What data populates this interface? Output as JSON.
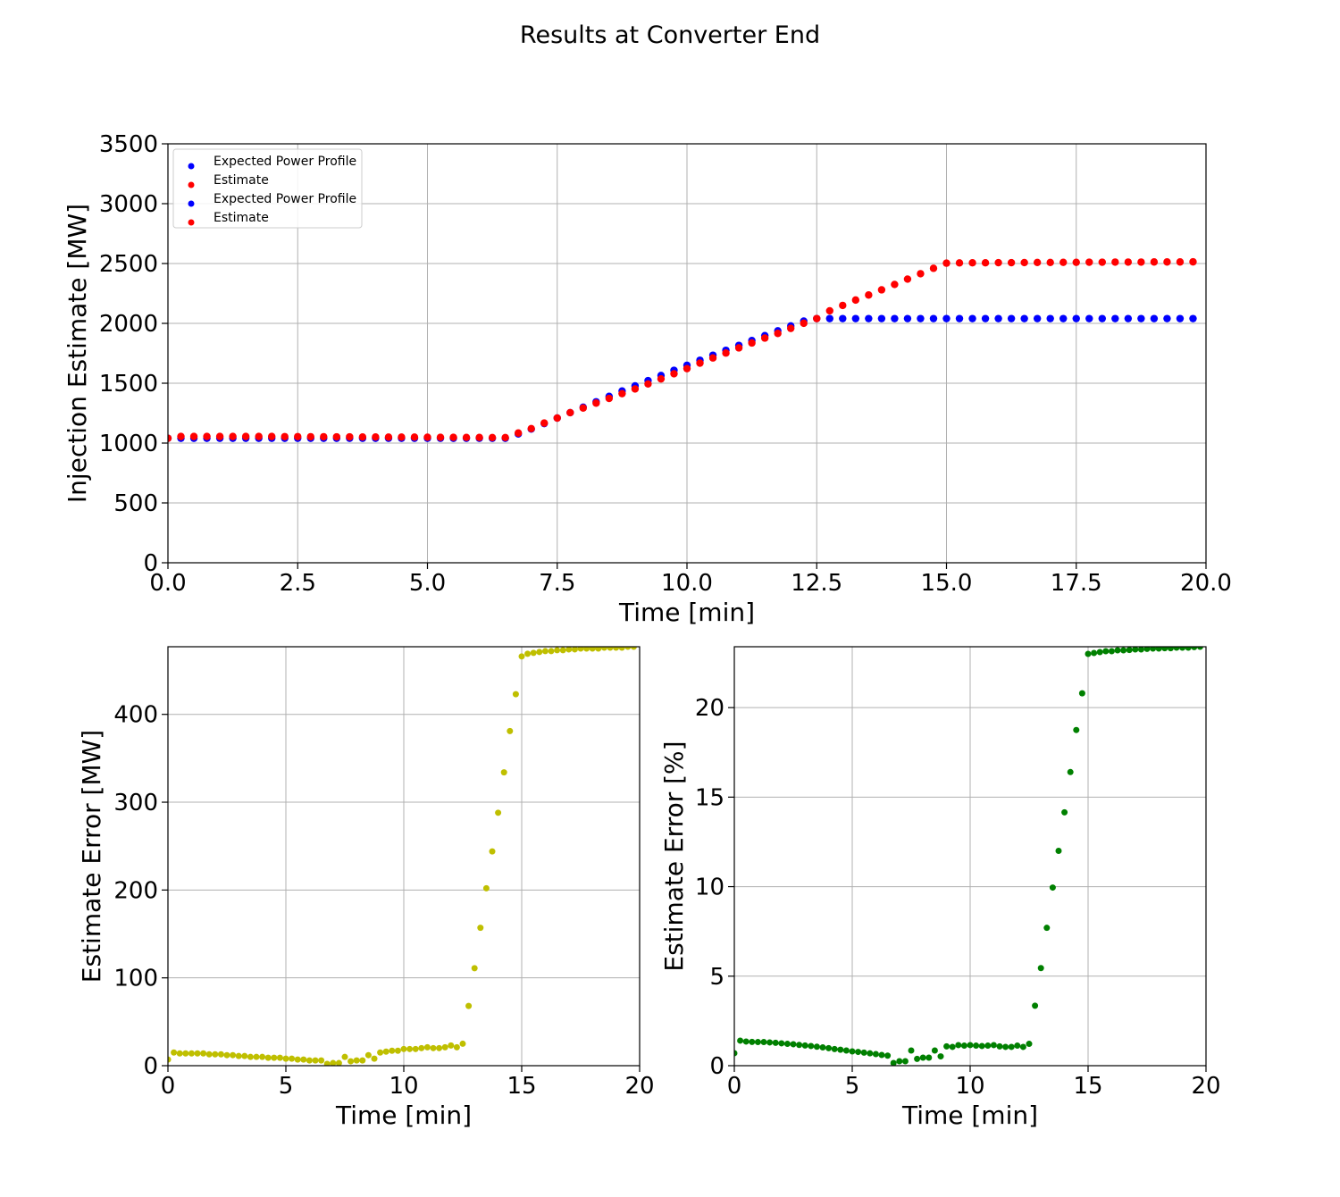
{
  "figure": {
    "title": "Results at Converter End"
  },
  "chart_data": [
    {
      "type": "scatter",
      "xlabel": "Time [min]",
      "ylabel": "Injection Estimate [MW]",
      "xlim": [
        0,
        20
      ],
      "ylim": [
        0,
        3500
      ],
      "xticks": [
        "0.0",
        "2.5",
        "5.0",
        "7.5",
        "10.0",
        "12.5",
        "15.0",
        "17.5",
        "20.0"
      ],
      "yticks": [
        "0",
        "500",
        "1000",
        "1500",
        "2000",
        "2500",
        "3000",
        "3500"
      ],
      "grid": true,
      "legend_position": "top-left",
      "legend": [
        {
          "label": "Expected Power Profile",
          "color": "#0000ff"
        },
        {
          "label": "Estimate",
          "color": "#ff0000"
        },
        {
          "label": "Expected Power Profile",
          "color": "#0000ff"
        },
        {
          "label": "Estimate",
          "color": "#ff0000"
        }
      ],
      "series": [
        {
          "name": "Expected Power Profile",
          "color": "#0000ff",
          "x": [
            0,
            0.25,
            0.5,
            0.75,
            1,
            1.25,
            1.5,
            1.75,
            2,
            2.25,
            2.5,
            2.75,
            3,
            3.25,
            3.5,
            3.75,
            4,
            4.25,
            4.5,
            4.75,
            5,
            5.25,
            5.5,
            5.75,
            6,
            6.25,
            6.5,
            6.75,
            7,
            7.25,
            7.5,
            7.75,
            8,
            8.25,
            8.5,
            8.75,
            9,
            9.25,
            9.5,
            9.75,
            10,
            10.25,
            10.5,
            10.75,
            11,
            11.25,
            11.5,
            11.75,
            12,
            12.25,
            12.5,
            12.75,
            13,
            13.25,
            13.5,
            13.75,
            14,
            14.25,
            14.5,
            14.75,
            15,
            15.25,
            15.5,
            15.75,
            16,
            16.25,
            16.5,
            16.75,
            17,
            17.25,
            17.5,
            17.75,
            18,
            18.25,
            18.5,
            18.75,
            19,
            19.25,
            19.5,
            19.75
          ],
          "y": [
            1040,
            1040,
            1040,
            1040,
            1040,
            1040,
            1040,
            1040,
            1040,
            1040,
            1040,
            1040,
            1040,
            1040,
            1040,
            1040,
            1040,
            1040,
            1040,
            1040,
            1040,
            1040,
            1040,
            1040,
            1040,
            1040,
            1040,
            1076,
            1117,
            1163,
            1209,
            1254,
            1300,
            1345,
            1390,
            1435,
            1478,
            1522,
            1565,
            1608,
            1650,
            1692,
            1734,
            1775,
            1816,
            1857,
            1898,
            1938,
            1979,
            2019,
            2040,
            2040,
            2040,
            2040,
            2040,
            2040,
            2040,
            2040,
            2040,
            2040,
            2040,
            2040,
            2040,
            2040,
            2040,
            2040,
            2040,
            2040,
            2040,
            2040,
            2040,
            2040,
            2040,
            2040,
            2040,
            2040,
            2040,
            2040,
            2040,
            2040
          ]
        },
        {
          "name": "Estimate",
          "color": "#ff0000",
          "x": [
            0,
            0.25,
            0.5,
            0.75,
            1,
            1.25,
            1.5,
            1.75,
            2,
            2.25,
            2.5,
            2.75,
            3,
            3.25,
            3.5,
            3.75,
            4,
            4.25,
            4.5,
            4.75,
            5,
            5.25,
            5.5,
            5.75,
            6,
            6.25,
            6.5,
            6.75,
            7,
            7.25,
            7.5,
            7.75,
            8,
            8.25,
            8.5,
            8.75,
            9,
            9.25,
            9.5,
            9.75,
            10,
            10.25,
            10.5,
            10.75,
            11,
            11.25,
            11.5,
            11.75,
            12,
            12.25,
            12.5,
            12.75,
            13,
            13.25,
            13.5,
            13.75,
            14,
            14.25,
            14.5,
            14.75,
            15,
            15.25,
            15.5,
            15.75,
            16,
            16.25,
            16.5,
            16.75,
            17,
            17.25,
            17.5,
            17.75,
            18,
            18.25,
            18.5,
            18.75,
            19,
            19.25,
            19.5,
            19.75
          ],
          "y": [
            1040,
            1055,
            1055,
            1055,
            1055,
            1055,
            1055,
            1055,
            1055,
            1054,
            1054,
            1053,
            1053,
            1052,
            1052,
            1051,
            1051,
            1050,
            1050,
            1050,
            1049,
            1048,
            1048,
            1047,
            1047,
            1046,
            1046,
            1084,
            1121,
            1167,
            1209,
            1254,
            1293,
            1334,
            1373,
            1413,
            1452,
            1494,
            1536,
            1579,
            1622,
            1668,
            1711,
            1752,
            1795,
            1836,
            1877,
            1916,
            1958,
            2001,
            2040,
            2105,
            2150,
            2195,
            2237,
            2280,
            2325,
            2370,
            2415,
            2460,
            2503,
            2505,
            2506,
            2506,
            2507,
            2507,
            2508,
            2509,
            2509,
            2510,
            2510,
            2511,
            2511,
            2512,
            2512,
            2512,
            2513,
            2513,
            2513,
            2514
          ]
        }
      ]
    },
    {
      "type": "scatter",
      "xlabel": "Time [min]",
      "ylabel": "Estimate Error [MW]",
      "xlim": [
        0,
        20
      ],
      "ylim": [
        0,
        477
      ],
      "xticks": [
        "0",
        "5",
        "10",
        "15",
        "20"
      ],
      "yticks": [
        "0",
        "100",
        "200",
        "300",
        "400"
      ],
      "grid": true,
      "series": [
        {
          "color": "#bfbf00",
          "x": [
            0,
            0.25,
            0.5,
            0.75,
            1,
            1.25,
            1.5,
            1.75,
            2,
            2.25,
            2.5,
            2.75,
            3,
            3.25,
            3.5,
            3.75,
            4,
            4.25,
            4.5,
            4.75,
            5,
            5.25,
            5.5,
            5.75,
            6,
            6.25,
            6.5,
            6.75,
            7,
            7.25,
            7.5,
            7.75,
            8,
            8.25,
            8.5,
            8.75,
            9,
            9.25,
            9.5,
            9.75,
            10,
            10.25,
            10.5,
            10.75,
            11,
            11.25,
            11.5,
            11.75,
            12,
            12.25,
            12.5,
            12.75,
            13,
            13.25,
            13.5,
            13.75,
            14,
            14.25,
            14.5,
            14.75,
            15,
            15.25,
            15.5,
            15.75,
            16,
            16.25,
            16.5,
            16.75,
            17,
            17.25,
            17.5,
            17.75,
            18,
            18.25,
            18.5,
            18.75,
            19,
            19.25,
            19.5,
            19.75
          ],
          "y": [
            7,
            15,
            14,
            14,
            14,
            14,
            14,
            13,
            13,
            13,
            12,
            12,
            11,
            11,
            10,
            10,
            10,
            9,
            9,
            9,
            8,
            8,
            7,
            7,
            6,
            6,
            6,
            2,
            3,
            3,
            10,
            5,
            6,
            6,
            12,
            8,
            15,
            16,
            17,
            17,
            19,
            19,
            19,
            20,
            21,
            20,
            20,
            21,
            23,
            21,
            25,
            68,
            111,
            157,
            202,
            244,
            288,
            334,
            381,
            423,
            466,
            469,
            470,
            471,
            472,
            472,
            473,
            473,
            474,
            474,
            475,
            475,
            475,
            475,
            476,
            476,
            476,
            476,
            477,
            477
          ]
        }
      ]
    },
    {
      "type": "scatter",
      "xlabel": "Time [min]",
      "ylabel": "Estimate Error [%]",
      "xlim": [
        0,
        20
      ],
      "ylim": [
        0,
        23.4
      ],
      "xticks": [
        "0",
        "5",
        "10",
        "15",
        "20"
      ],
      "yticks": [
        "0",
        "5",
        "10",
        "15",
        "20"
      ],
      "grid": true,
      "series": [
        {
          "color": "#008000",
          "x": [
            0,
            0.25,
            0.5,
            0.75,
            1,
            1.25,
            1.5,
            1.75,
            2,
            2.25,
            2.5,
            2.75,
            3,
            3.25,
            3.5,
            3.75,
            4,
            4.25,
            4.5,
            4.75,
            5,
            5.25,
            5.5,
            5.75,
            6,
            6.25,
            6.5,
            6.75,
            7,
            7.25,
            7.5,
            7.75,
            8,
            8.25,
            8.5,
            8.75,
            9,
            9.25,
            9.5,
            9.75,
            10,
            10.25,
            10.5,
            10.75,
            11,
            11.25,
            11.5,
            11.75,
            12,
            12.25,
            12.5,
            12.75,
            13,
            13.25,
            13.5,
            13.75,
            14,
            14.25,
            14.5,
            14.75,
            15,
            15.25,
            15.5,
            15.75,
            16,
            16.25,
            16.5,
            16.75,
            17,
            17.25,
            17.5,
            17.75,
            18,
            18.25,
            18.5,
            18.75,
            19,
            19.25,
            19.5,
            19.75
          ],
          "y": [
            0.7,
            1.4,
            1.35,
            1.33,
            1.32,
            1.32,
            1.3,
            1.28,
            1.25,
            1.22,
            1.2,
            1.16,
            1.13,
            1.1,
            1.06,
            1.02,
            0.98,
            0.93,
            0.89,
            0.85,
            0.8,
            0.77,
            0.73,
            0.69,
            0.65,
            0.6,
            0.56,
            0.15,
            0.25,
            0.25,
            0.85,
            0.38,
            0.45,
            0.45,
            0.85,
            0.52,
            1.08,
            1.05,
            1.15,
            1.12,
            1.15,
            1.12,
            1.1,
            1.12,
            1.15,
            1.08,
            1.05,
            1.05,
            1.12,
            1.05,
            1.22,
            3.35,
            5.45,
            7.7,
            9.95,
            12.0,
            14.15,
            16.4,
            18.75,
            20.8,
            23.0,
            23.05,
            23.1,
            23.15,
            23.15,
            23.2,
            23.2,
            23.22,
            23.25,
            23.25,
            23.28,
            23.3,
            23.3,
            23.32,
            23.32,
            23.35,
            23.35,
            23.35,
            23.38,
            23.4
          ]
        }
      ]
    }
  ]
}
